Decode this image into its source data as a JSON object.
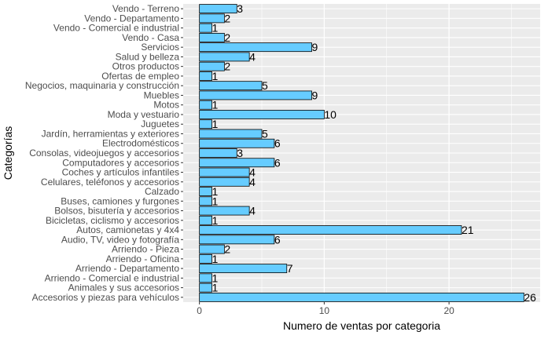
{
  "chart_data": {
    "type": "bar",
    "orientation": "horizontal",
    "xlabel": "Numero de ventas por categoria",
    "ylabel": "Categorías",
    "xlim": [
      -1.3,
      27.3
    ],
    "xticks": [
      0,
      10,
      20
    ],
    "grid": true,
    "bar_fill": "#66CCFF",
    "bar_stroke": "#000000",
    "panel_background": "#EBEBEB",
    "gridline_color": "#FFFFFF",
    "categories": [
      "Vendo - Terreno",
      "Vendo - Departamento",
      "Vendo - Comercial e industrial",
      "Vendo - Casa",
      "Servicios",
      "Salud y belleza",
      "Otros productos",
      "Ofertas de empleo",
      "Negocios, maquinaria y construcción",
      "Muebles",
      "Motos",
      "Moda y vestuario",
      "Juguetes",
      "Jardín, herramientas y exteriores",
      "Electrodomésticos",
      "Consolas, videojuegos y accesorios",
      "Computadores y accesorios",
      "Coches y artículos infantiles",
      "Celulares, teléfonos y accesorios",
      "Calzado",
      "Buses, camiones y furgones",
      "Bolsos, bisutería y accesorios",
      "Bicicletas, ciclismo y accesorios",
      "Autos, camionetas y 4x4",
      "Audio, TV, video y fotografía",
      "Arriendo - Pieza",
      "Arriendo - Oficina",
      "Arriendo - Departamento",
      "Arriendo - Comercial e industrial",
      "Animales y sus accesorios",
      "Accesorios y piezas para vehículos"
    ],
    "values": [
      3,
      2,
      1,
      2,
      9,
      4,
      2,
      1,
      5,
      9,
      1,
      10,
      1,
      5,
      6,
      3,
      6,
      4,
      4,
      1,
      1,
      4,
      1,
      21,
      6,
      2,
      1,
      7,
      1,
      1,
      26
    ]
  }
}
